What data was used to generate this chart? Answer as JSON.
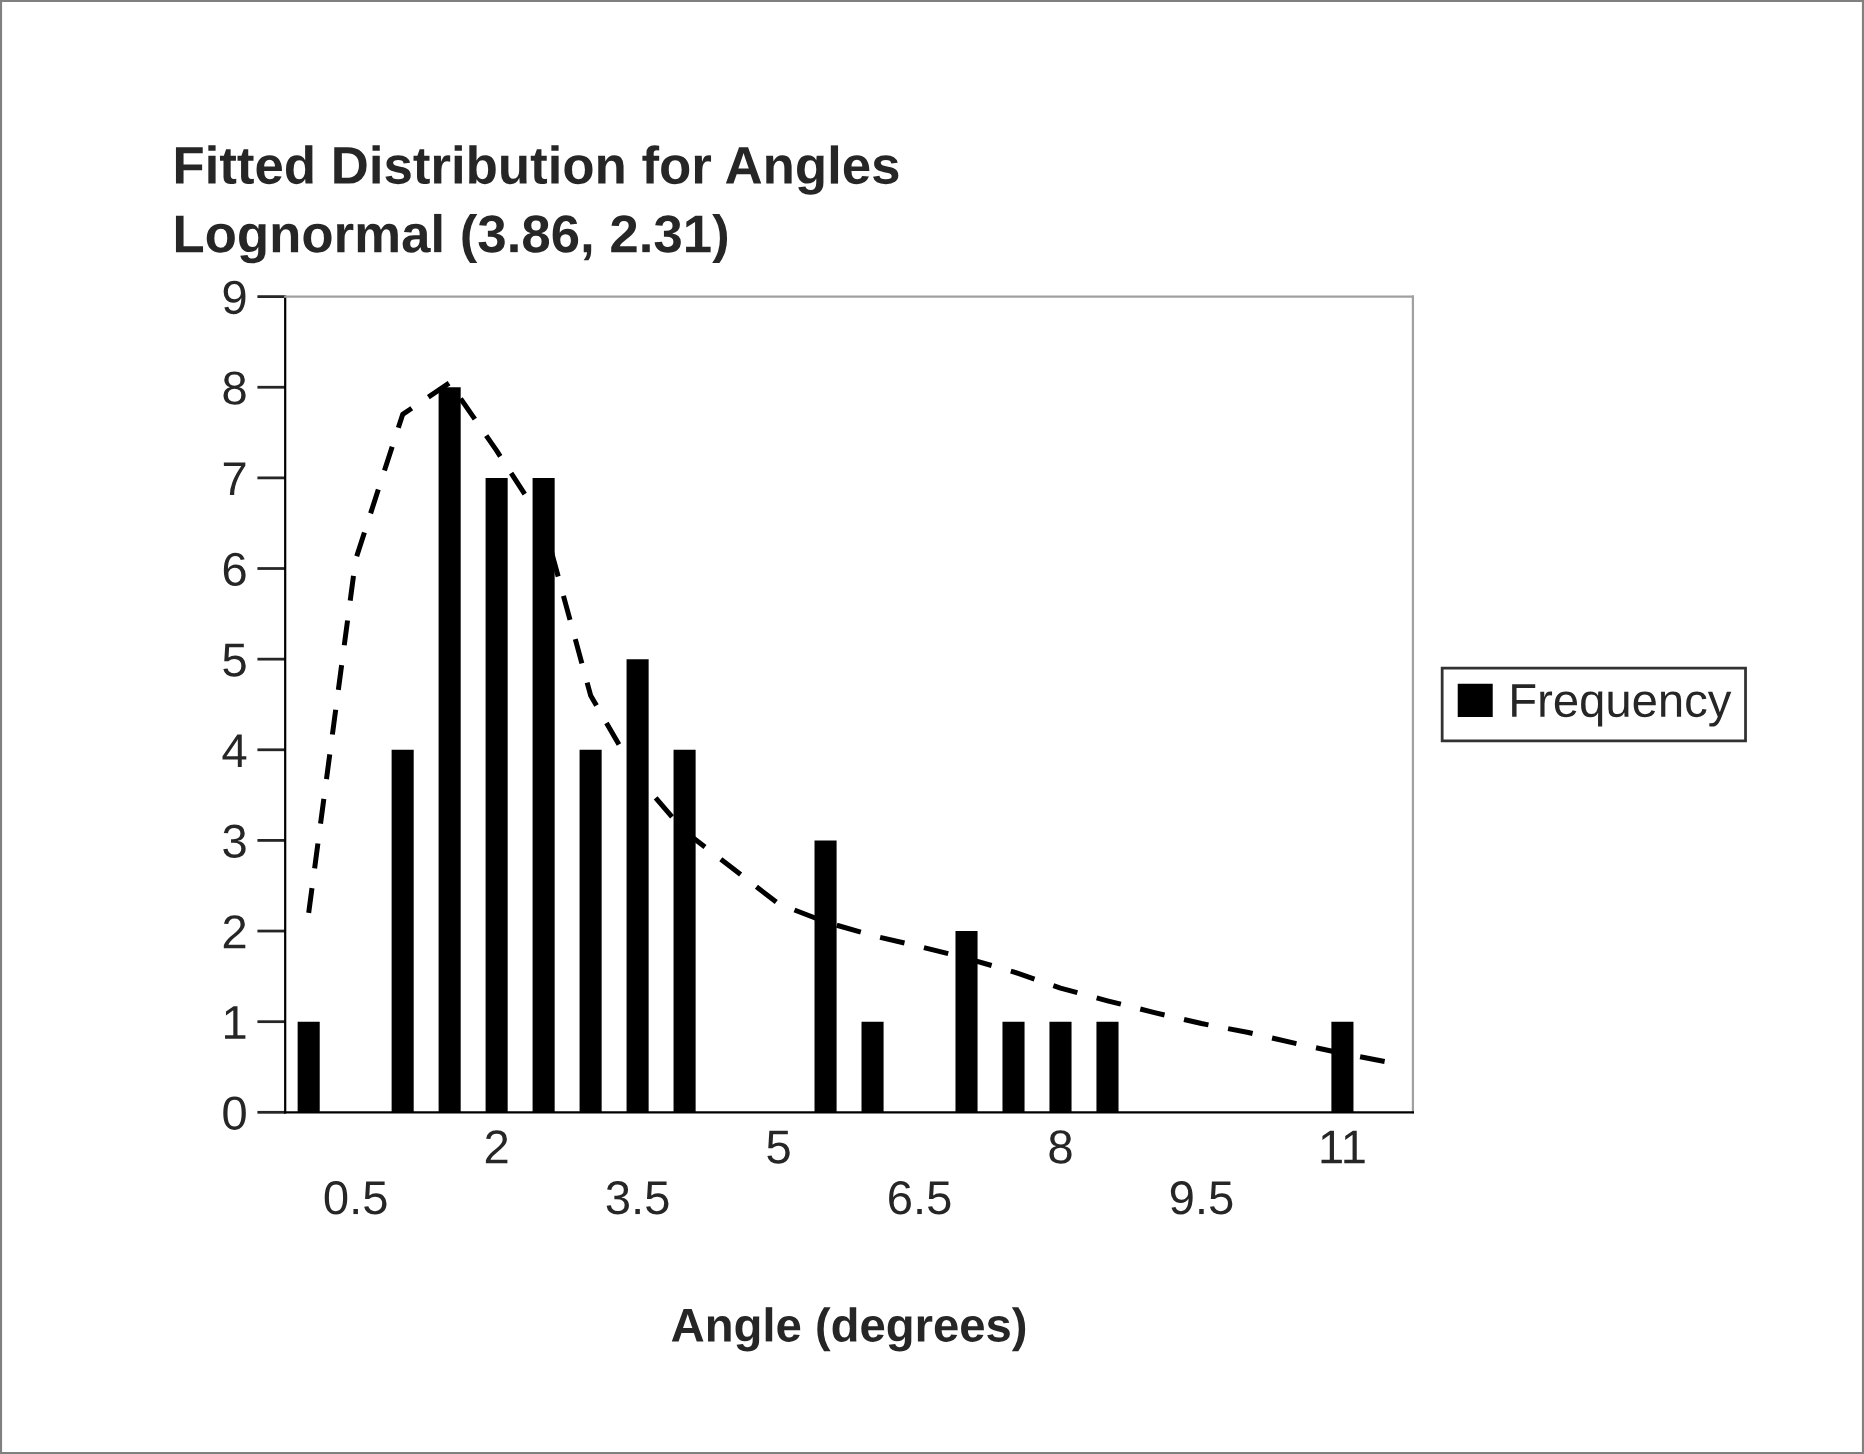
{
  "chart_data": {
    "type": "bar",
    "title": "Fitted Distribution for Angles\nLognormal (3.86, 2.31)",
    "xlabel": "Angle (degrees)",
    "categories": [
      null,
      "0.5",
      null,
      null,
      "2",
      null,
      null,
      "3.5",
      null,
      null,
      "5",
      null,
      null,
      "6.5",
      null,
      null,
      "8",
      null,
      null,
      "9.5",
      null,
      null,
      "11",
      null
    ],
    "series": [
      {
        "name": "Frequency",
        "color": "#000000",
        "values": [
          1,
          0,
          4,
          8,
          7,
          7,
          4,
          5,
          4,
          0,
          0,
          3,
          1,
          0,
          2,
          1,
          1,
          1,
          0,
          0,
          0,
          0,
          1,
          0
        ]
      },
      {
        "type": "line",
        "color": "#000000",
        "line_style": "dashed",
        "values": [
          2.2,
          6.1,
          7.7,
          8.05,
          7.3,
          6.5,
          4.6,
          3.7,
          3.1,
          2.7,
          2.3,
          2.1,
          1.95,
          1.83,
          1.7,
          1.55,
          1.37,
          1.23,
          1.1,
          0.98,
          0.88,
          0.76,
          0.65,
          0.55
        ]
      }
    ],
    "ylim": [
      0,
      9
    ],
    "yticks": [
      0,
      1,
      2,
      3,
      4,
      5,
      6,
      7,
      8,
      9
    ],
    "grid": false,
    "legend": "right"
  }
}
